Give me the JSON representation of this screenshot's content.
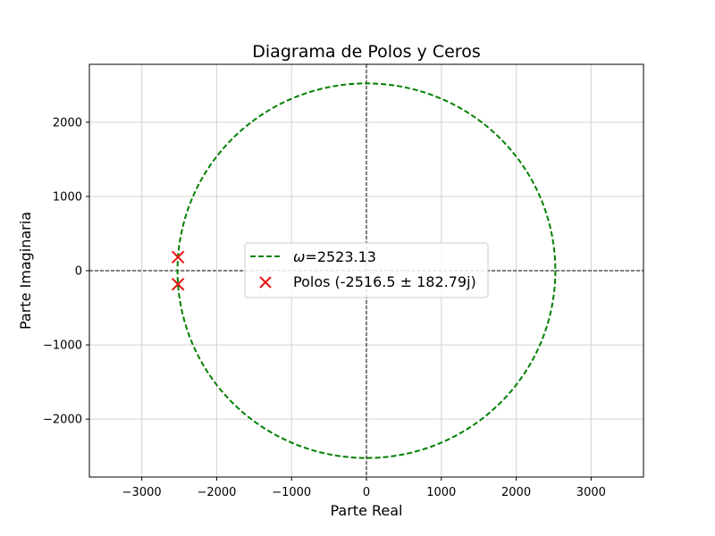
{
  "chart_data": {
    "type": "scatter",
    "title": "Diagrama de Polos y Ceros",
    "xlabel": "Parte Real",
    "ylabel": "Parte Imaginaria",
    "xlim": [
      -3700,
      3700
    ],
    "ylim": [
      -2780,
      2780
    ],
    "xticks": [
      -3000,
      -2000,
      -1000,
      0,
      1000,
      2000,
      3000
    ],
    "yticks": [
      -2000,
      -1000,
      0,
      1000,
      2000
    ],
    "xtick_labels": [
      "−3000",
      "−2000",
      "−1000",
      "0",
      "1000",
      "2000",
      "3000"
    ],
    "ytick_labels": [
      "−2000",
      "−1000",
      "0",
      "1000",
      "2000"
    ],
    "grid": true,
    "legend_position": "center",
    "series": [
      {
        "name": "ω=2523.13",
        "legend_label": {
          "symbol": "ω",
          "rest": "=2523.13"
        },
        "kind": "circle",
        "radius": 2523.13,
        "center": [
          0,
          0
        ],
        "color": "#008000",
        "style": "dashed"
      },
      {
        "name": "Polos (-2516.5 ± 182.79j)",
        "legend_label": {
          "rest": "Polos (-2516.5 ± 182.79j)"
        },
        "kind": "points",
        "marker": "x",
        "color": "#e8150f",
        "points": [
          [
            -2516.5,
            182.79
          ],
          [
            -2516.5,
            -182.79
          ]
        ]
      }
    ]
  }
}
